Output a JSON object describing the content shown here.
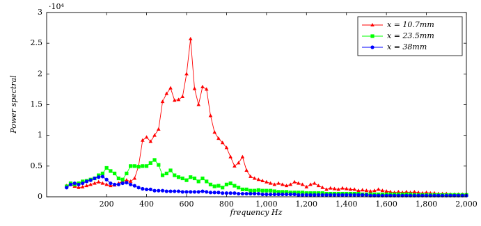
{
  "chart_data": {
    "type": "line",
    "multiplier": "·10⁴",
    "xlabel": "frequency Hz",
    "ylabel": "Power spectral",
    "xlim": [
      -100,
      2000
    ],
    "ylim": [
      0,
      3
    ],
    "xticks": [
      200,
      400,
      600,
      800,
      {
        "value": 1000,
        "label": "1,000"
      },
      {
        "value": 1200,
        "label": "1,200"
      },
      {
        "value": 1400,
        "label": "1,400"
      },
      {
        "value": 1600,
        "label": "1,600"
      },
      {
        "value": 1800,
        "label": "1,800"
      },
      {
        "value": 2000,
        "label": "2,000"
      }
    ],
    "yticks": [
      0,
      0.5,
      1,
      1.5,
      2,
      2.5,
      3
    ],
    "legend": "upper right",
    "x": [
      0,
      20,
      40,
      60,
      80,
      100,
      120,
      140,
      160,
      180,
      200,
      220,
      240,
      260,
      280,
      300,
      320,
      340,
      360,
      380,
      400,
      420,
      440,
      460,
      480,
      500,
      520,
      540,
      560,
      580,
      600,
      620,
      640,
      660,
      680,
      700,
      720,
      740,
      760,
      780,
      800,
      820,
      840,
      860,
      880,
      900,
      920,
      940,
      960,
      980,
      1000,
      1020,
      1040,
      1060,
      1080,
      1100,
      1120,
      1140,
      1160,
      1180,
      1200,
      1220,
      1240,
      1260,
      1280,
      1300,
      1320,
      1340,
      1360,
      1380,
      1400,
      1420,
      1440,
      1460,
      1480,
      1500,
      1520,
      1540,
      1560,
      1580,
      1600,
      1620,
      1640,
      1660,
      1680,
      1700,
      1720,
      1740,
      1760,
      1780,
      1800,
      1820,
      1840,
      1860,
      1880,
      1900,
      1920,
      1940,
      1960,
      1980,
      2000
    ],
    "series": [
      {
        "name": "x = 10.7mm",
        "color": "#ff0000",
        "marker": "triangle",
        "values": [
          0.18,
          0.2,
          0.17,
          0.15,
          0.16,
          0.18,
          0.2,
          0.22,
          0.24,
          0.22,
          0.2,
          0.18,
          0.19,
          0.22,
          0.25,
          0.27,
          0.25,
          0.3,
          0.5,
          0.92,
          0.97,
          0.9,
          1.0,
          1.1,
          1.55,
          1.68,
          1.77,
          1.57,
          1.58,
          1.63,
          2.0,
          2.57,
          1.76,
          1.5,
          1.79,
          1.75,
          1.32,
          1.05,
          0.95,
          0.88,
          0.8,
          0.65,
          0.5,
          0.55,
          0.65,
          0.43,
          0.33,
          0.3,
          0.28,
          0.26,
          0.24,
          0.22,
          0.2,
          0.22,
          0.2,
          0.18,
          0.2,
          0.24,
          0.22,
          0.2,
          0.16,
          0.2,
          0.22,
          0.18,
          0.15,
          0.12,
          0.14,
          0.13,
          0.12,
          0.14,
          0.13,
          0.12,
          0.12,
          0.1,
          0.11,
          0.1,
          0.09,
          0.1,
          0.12,
          0.1,
          0.09,
          0.08,
          0.07,
          0.08,
          0.07,
          0.08,
          0.07,
          0.08,
          0.07,
          0.06,
          0.07,
          0.06,
          0.06,
          0.05,
          0.05,
          0.05,
          0.04,
          0.04,
          0.04,
          0.04,
          0.04
        ]
      },
      {
        "name": "x = 23.5mm",
        "color": "#00ff00",
        "marker": "square",
        "values": [
          0.17,
          0.22,
          0.2,
          0.22,
          0.25,
          0.26,
          0.28,
          0.3,
          0.35,
          0.38,
          0.47,
          0.42,
          0.38,
          0.3,
          0.28,
          0.38,
          0.5,
          0.5,
          0.49,
          0.5,
          0.5,
          0.55,
          0.6,
          0.52,
          0.35,
          0.38,
          0.43,
          0.35,
          0.32,
          0.3,
          0.27,
          0.32,
          0.3,
          0.25,
          0.3,
          0.25,
          0.2,
          0.17,
          0.18,
          0.15,
          0.2,
          0.22,
          0.18,
          0.15,
          0.12,
          0.12,
          0.1,
          0.1,
          0.11,
          0.1,
          0.1,
          0.1,
          0.09,
          0.08,
          0.08,
          0.08,
          0.07,
          0.07,
          0.07,
          0.07,
          0.06,
          0.06,
          0.06,
          0.06,
          0.06,
          0.05,
          0.05,
          0.05,
          0.05,
          0.05,
          0.05,
          0.05,
          0.05,
          0.05,
          0.04,
          0.04,
          0.04,
          0.04,
          0.04,
          0.04,
          0.04,
          0.04,
          0.04,
          0.04,
          0.04,
          0.04,
          0.04,
          0.03,
          0.03,
          0.03,
          0.03,
          0.03,
          0.03,
          0.03,
          0.03,
          0.03,
          0.03,
          0.03,
          0.03,
          0.03,
          0.03
        ]
      },
      {
        "name": "x = 38mm",
        "color": "#0000ff",
        "marker": "circle",
        "values": [
          0.15,
          0.2,
          0.22,
          0.2,
          0.22,
          0.25,
          0.27,
          0.3,
          0.32,
          0.33,
          0.28,
          0.22,
          0.2,
          0.2,
          0.22,
          0.23,
          0.2,
          0.18,
          0.15,
          0.13,
          0.12,
          0.12,
          0.1,
          0.1,
          0.1,
          0.09,
          0.09,
          0.09,
          0.09,
          0.08,
          0.08,
          0.08,
          0.08,
          0.08,
          0.09,
          0.08,
          0.07,
          0.07,
          0.07,
          0.06,
          0.06,
          0.06,
          0.06,
          0.05,
          0.05,
          0.05,
          0.05,
          0.05,
          0.05,
          0.04,
          0.04,
          0.04,
          0.04,
          0.04,
          0.04,
          0.04,
          0.04,
          0.04,
          0.03,
          0.03,
          0.03,
          0.03,
          0.03,
          0.03,
          0.03,
          0.03,
          0.03,
          0.03,
          0.03,
          0.03,
          0.03,
          0.03,
          0.03,
          0.03,
          0.03,
          0.03,
          0.02,
          0.02,
          0.02,
          0.02,
          0.02,
          0.02,
          0.02,
          0.02,
          0.02,
          0.02,
          0.02,
          0.02,
          0.02,
          0.02,
          0.02,
          0.02,
          0.02,
          0.02,
          0.02,
          0.02,
          0.02,
          0.02,
          0.02,
          0.02,
          0.02
        ]
      }
    ]
  }
}
